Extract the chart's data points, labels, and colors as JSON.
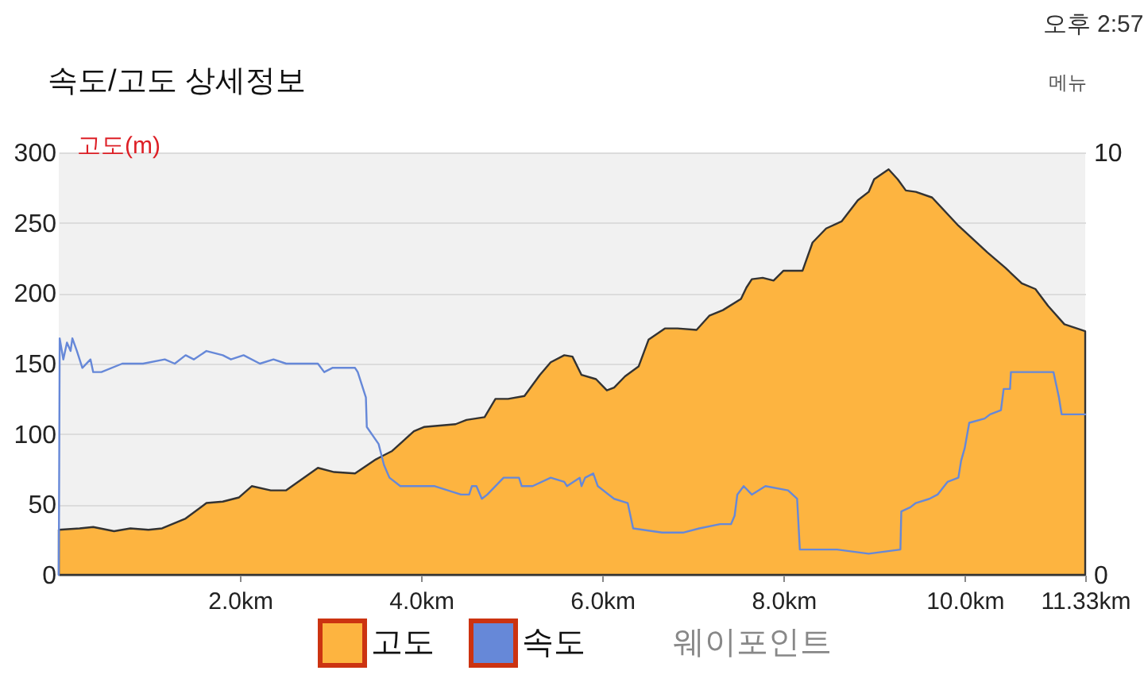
{
  "chart_data": {
    "type": "area",
    "title": "속도/고도 상세정보",
    "ylabel": "고도(m)",
    "xlim": [
      0,
      11.33
    ],
    "xticks": [
      {
        "value": 2,
        "label": "2.0km"
      },
      {
        "value": 4,
        "label": "4.0km"
      },
      {
        "value": 6,
        "label": "6.0km"
      },
      {
        "value": 8,
        "label": "8.0km"
      },
      {
        "value": 10,
        "label": "10.0km"
      },
      {
        "value": 11.33,
        "label": "11.33km"
      }
    ],
    "ylim": [
      0,
      300
    ],
    "yticks": [
      0,
      50,
      100,
      150,
      200,
      250,
      300
    ],
    "y2lim": [
      0,
      10
    ],
    "y2ticks": [
      0,
      10
    ],
    "grid": "y",
    "legend": "bottom",
    "annotations": [
      "오후 2:57",
      "메뉴",
      "웨이포인트"
    ],
    "series": [
      {
        "name": "고도",
        "color": "#fdb440",
        "x": [
          0,
          0.23,
          0.38,
          0.61,
          0.79,
          0.99,
          1.14,
          1.4,
          1.63,
          1.81,
          1.99,
          2.13,
          2.34,
          2.51,
          2.86,
          3.04,
          3.27,
          3.5,
          3.56,
          3.68,
          3.92,
          4.03,
          4.38,
          4.5,
          4.7,
          4.82,
          4.96,
          5.14,
          5.31,
          5.43,
          5.58,
          5.67,
          5.77,
          5.93,
          6.05,
          6.13,
          6.25,
          6.4,
          6.51,
          6.69,
          6.83,
          7.04,
          7.18,
          7.33,
          7.53,
          7.59,
          7.65,
          7.77,
          7.89,
          8.0,
          8.21,
          8.32,
          8.47,
          8.64,
          8.82,
          8.94,
          9.0,
          9.16,
          9.26,
          9.35,
          9.46,
          9.64,
          9.93,
          10.25,
          10.45,
          10.63,
          10.78,
          10.92,
          11.1,
          11.33
        ],
        "values": [
          32,
          33,
          34,
          31,
          33,
          32,
          33,
          40,
          51,
          52,
          55,
          63,
          60,
          60,
          76,
          73,
          72,
          82,
          84,
          88,
          102,
          105,
          107,
          110,
          112,
          125,
          125,
          127,
          142,
          151,
          156,
          155,
          142,
          139,
          131,
          133,
          141,
          148,
          167,
          175,
          175,
          174,
          184,
          188,
          196,
          204,
          210,
          211,
          209,
          216,
          216,
          236,
          246,
          251,
          266,
          272,
          281,
          288,
          281,
          273,
          272,
          268,
          248,
          229,
          218,
          207,
          203,
          191,
          178,
          173
        ]
      },
      {
        "name": "속도",
        "type": "line",
        "axis": "y2",
        "line_style": "solid",
        "color": "#6688d8",
        "x": [
          0,
          0.01,
          0.05,
          0.09,
          0.13,
          0.15,
          0.2,
          0.26,
          0.35,
          0.38,
          0.47,
          0.7,
          0.93,
          1.17,
          1.28,
          1.4,
          1.49,
          1.63,
          1.81,
          1.9,
          2.04,
          2.22,
          2.37,
          2.51,
          2.86,
          2.93,
          3.02,
          3.27,
          3.3,
          3.39,
          3.4,
          3.53,
          3.59,
          3.65,
          3.77,
          4.15,
          4.44,
          4.53,
          4.56,
          4.61,
          4.67,
          4.73,
          4.91,
          5.08,
          5.11,
          5.23,
          5.43,
          5.58,
          5.61,
          5.75,
          5.77,
          5.81,
          5.9,
          5.95,
          6.13,
          6.28,
          6.34,
          6.66,
          6.89,
          7.07,
          7.3,
          7.42,
          7.46,
          7.49,
          7.56,
          7.65,
          7.8,
          8.05,
          8.15,
          8.18,
          8.59,
          8.94,
          9.29,
          9.3,
          9.4,
          9.46,
          9.61,
          9.7,
          9.81,
          9.93,
          9.96,
          10.0,
          10.05,
          10.22,
          10.28,
          10.4,
          10.43,
          10.5,
          10.51,
          10.63,
          10.98,
          11.04,
          11.07,
          11.33
        ],
        "values": [
          0,
          5.6,
          5.1,
          5.5,
          5.3,
          5.6,
          5.3,
          4.9,
          5.1,
          4.8,
          4.8,
          5.0,
          5.0,
          5.1,
          5.0,
          5.2,
          5.1,
          5.3,
          5.2,
          5.1,
          5.2,
          5.0,
          5.1,
          5.0,
          5.0,
          4.8,
          4.9,
          4.9,
          4.8,
          4.2,
          3.5,
          3.1,
          2.6,
          2.3,
          2.1,
          2.1,
          1.9,
          1.9,
          2.1,
          2.1,
          1.8,
          1.9,
          2.3,
          2.3,
          2.1,
          2.1,
          2.3,
          2.2,
          2.1,
          2.3,
          2.1,
          2.3,
          2.4,
          2.1,
          1.8,
          1.7,
          1.1,
          1.0,
          1.0,
          1.1,
          1.2,
          1.2,
          1.4,
          1.9,
          2.1,
          1.9,
          2.1,
          2.0,
          1.8,
          0.6,
          0.6,
          0.5,
          0.6,
          1.5,
          1.6,
          1.7,
          1.8,
          1.9,
          2.2,
          2.3,
          2.7,
          3.0,
          3.6,
          3.7,
          3.8,
          3.9,
          4.4,
          4.4,
          4.8,
          4.8,
          4.8,
          4.2,
          3.8,
          3.8
        ]
      }
    ]
  }
}
